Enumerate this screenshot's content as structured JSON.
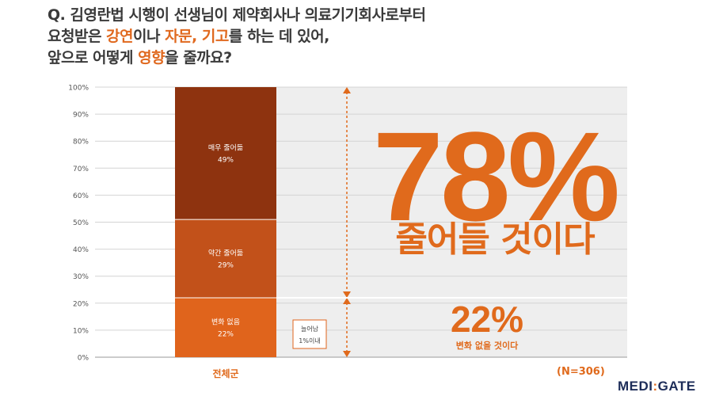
{
  "title": {
    "line1": "Q. 김영란법 시행이 선생님이 제약회사나 의료기기회사로부터",
    "line2_a": "요청받은 ",
    "line2_hl1": "강연",
    "line2_b": "이나 ",
    "line2_hl2": "자문, 기고",
    "line2_c": "를 하는 데 있어,",
    "line3_a": "앞으로 어떻게 ",
    "line3_hl": "영향",
    "line3_b": "을 줄까요?"
  },
  "chart_data": {
    "type": "bar",
    "stacked": true,
    "categories": [
      "전체군"
    ],
    "series": [
      {
        "name": "변화 없음",
        "values": [
          22
        ],
        "color": "#e0641c",
        "label": "변화 없음",
        "value_label": "22%"
      },
      {
        "name": "약간 줄어듦",
        "values": [
          29
        ],
        "color": "#c2511a",
        "label": "약간 줄어듦",
        "value_label": "29%"
      },
      {
        "name": "매우 줄어듦",
        "values": [
          49
        ],
        "color": "#8e330f",
        "label": "매우 줄어듦",
        "value_label": "49%"
      },
      {
        "name": "늘어남",
        "values": [
          1
        ],
        "color": "#e0641c"
      }
    ],
    "ylim": [
      0,
      100
    ],
    "yticks": [
      "0%",
      "10%",
      "20%",
      "30%",
      "40%",
      "50%",
      "60%",
      "70%",
      "80%",
      "90%",
      "100%"
    ],
    "grid": true,
    "annotation_increase": [
      "늘어남",
      "1%이내"
    ]
  },
  "callouts": {
    "decrease_value": "78%",
    "decrease_text": "줄어들 것이다",
    "nochange_value": "22%",
    "nochange_text": "변화 없을 것이다"
  },
  "sample_size": "(N=306)",
  "logo": {
    "left": "MEDI",
    "colon": ":",
    "right": "GATE"
  },
  "colors": {
    "accent": "#e06a1c",
    "dark": "#8e330f",
    "mid": "#c2511a",
    "panel": "#eeeeee"
  }
}
